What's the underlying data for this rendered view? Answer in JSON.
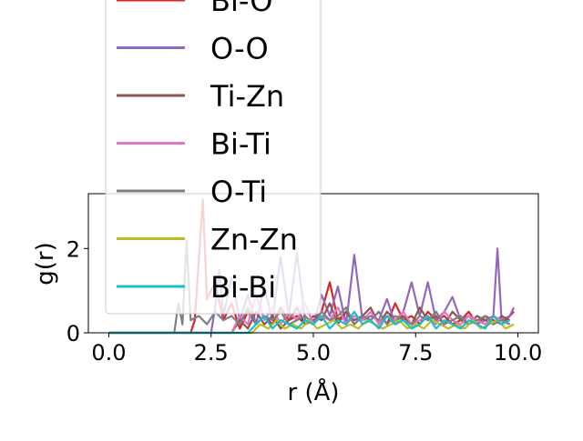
{
  "chart_data": {
    "type": "line",
    "xlabel": "r (Å)",
    "ylabel": "g(r)",
    "xlim": [
      -0.5,
      10.5
    ],
    "ylim": [
      0,
      3.3
    ],
    "x_ticks": [
      "0.0",
      "2.5",
      "5.0",
      "7.5",
      "10.0"
    ],
    "y_ticks": [
      "0",
      "2"
    ],
    "grid": false,
    "legend_placement": "upper-left, overflowing above plot",
    "series": [
      {
        "name": "Bi-O",
        "color": "#d62728",
        "x": [
          0,
          1.0,
          2.0,
          2.1,
          2.3,
          2.4,
          2.6,
          2.8,
          3.0,
          3.2,
          3.4,
          3.6,
          3.8,
          4.0,
          4.2,
          4.4,
          4.6,
          4.8,
          5.0,
          5.2,
          5.4,
          5.6,
          5.8,
          6.0,
          6.2,
          6.4,
          6.6,
          6.8,
          7.0,
          7.2,
          7.4,
          7.6,
          7.8,
          8.0,
          8.2,
          8.4,
          8.6,
          8.8,
          9.0,
          9.2,
          9.4,
          9.6,
          9.8,
          9.9
        ],
        "y": [
          0,
          0,
          0,
          0.3,
          3.15,
          0.8,
          1.2,
          0.3,
          0.7,
          0.1,
          0.5,
          0.2,
          0.4,
          0.2,
          0.6,
          0.3,
          0.4,
          0.2,
          0.3,
          0.5,
          1.2,
          0.3,
          0.5,
          0.2,
          0.4,
          0.3,
          0.5,
          0.2,
          0.7,
          0.3,
          0.4,
          0.2,
          0.5,
          0.3,
          0.4,
          0.2,
          0.3,
          0.5,
          0.2,
          0.4,
          0.3,
          0.2,
          0.4,
          0.5
        ]
      },
      {
        "name": "O-O",
        "color": "#9467bd",
        "x": [
          0,
          2.5,
          2.6,
          2.7,
          2.8,
          3.0,
          3.2,
          3.4,
          3.6,
          3.8,
          4.0,
          4.2,
          4.4,
          4.6,
          4.8,
          5.0,
          5.2,
          5.4,
          5.6,
          5.8,
          6.0,
          6.2,
          6.4,
          6.6,
          6.8,
          7.0,
          7.2,
          7.4,
          7.6,
          7.8,
          8.0,
          8.2,
          8.4,
          8.6,
          8.8,
          9.0,
          9.2,
          9.4,
          9.5,
          9.6,
          9.8,
          9.9
        ],
        "y": [
          0,
          0,
          0.6,
          1.5,
          0.4,
          1.3,
          0.3,
          0.9,
          0.2,
          1.1,
          0.3,
          1.8,
          0.4,
          1.9,
          0.3,
          0.2,
          0.9,
          0.4,
          1.1,
          0.2,
          1.85,
          0.3,
          0.4,
          0.3,
          0.8,
          0.2,
          0.5,
          1.2,
          0.4,
          1.2,
          0.3,
          0.5,
          0.85,
          0.3,
          0.4,
          0.2,
          0.3,
          0.4,
          2.0,
          0.3,
          0.4,
          0.6
        ]
      },
      {
        "name": "Ti-Zn",
        "color": "#8c564b",
        "x": [
          0,
          3.0,
          3.2,
          3.4,
          3.6,
          3.8,
          4.0,
          4.2,
          4.4,
          4.6,
          4.8,
          5.0,
          5.2,
          5.4,
          5.6,
          5.8,
          6.0,
          6.2,
          6.4,
          6.6,
          6.8,
          7.0,
          7.2,
          7.4,
          7.6,
          7.8,
          8.0,
          8.2,
          8.4,
          8.6,
          8.8,
          9.0,
          9.2,
          9.4,
          9.6,
          9.8
        ],
        "y": [
          0,
          0,
          0.3,
          0.1,
          0.5,
          0.2,
          0.4,
          0.1,
          0.3,
          0.6,
          0.2,
          0.4,
          0.3,
          0.7,
          0.2,
          0.5,
          0.3,
          0.4,
          0.6,
          0.2,
          0.5,
          0.3,
          0.4,
          0.2,
          0.6,
          0.3,
          0.4,
          0.2,
          0.5,
          0.3,
          0.2,
          0.4,
          0.3,
          0.2,
          0.4,
          0.3
        ]
      },
      {
        "name": "Bi-Ti",
        "color": "#e377c2",
        "x": [
          0,
          3.0,
          3.2,
          3.4,
          3.6,
          3.8,
          4.0,
          4.2,
          4.4,
          4.6,
          4.8,
          5.0,
          5.2,
          5.4,
          5.6,
          5.8,
          6.0,
          6.2,
          6.4,
          6.6,
          6.8,
          7.0,
          7.2,
          7.4,
          7.6,
          7.8,
          8.0,
          8.2,
          8.4,
          8.6,
          8.8,
          9.0,
          9.2,
          9.4,
          9.6,
          9.8
        ],
        "y": [
          0,
          0,
          0.4,
          0.2,
          0.9,
          0.3,
          0.6,
          0.2,
          0.5,
          0.3,
          0.7,
          0.2,
          0.4,
          0.3,
          0.6,
          0.2,
          0.4,
          0.3,
          0.5,
          0.2,
          0.4,
          0.3,
          0.5,
          0.2,
          0.3,
          0.4,
          0.2,
          0.5,
          0.3,
          0.2,
          0.4,
          0.3,
          0.2,
          0.4,
          0.3,
          0.2
        ]
      },
      {
        "name": "O-Ti",
        "color": "#7f7f7f",
        "x": [
          0,
          1.6,
          1.7,
          1.8,
          1.9,
          2.0,
          2.2,
          2.4,
          2.6,
          2.8,
          3.0,
          3.2,
          3.4,
          3.6,
          3.8,
          4.0,
          4.2,
          4.4,
          4.6,
          4.8,
          5.0,
          5.2,
          5.4,
          5.6,
          5.8,
          6.0,
          6.2,
          6.4,
          6.6,
          6.8,
          7.0,
          7.2,
          7.4,
          7.6,
          7.8,
          8.0,
          8.2,
          8.4,
          8.6,
          8.8,
          9.0,
          9.2,
          9.4,
          9.6,
          9.8
        ],
        "y": [
          0,
          0,
          0.7,
          0.2,
          2.2,
          0.3,
          0.4,
          0.2,
          0.5,
          0.3,
          0.4,
          0.2,
          0.6,
          0.2,
          0.4,
          0.3,
          0.5,
          0.2,
          0.3,
          0.4,
          0.2,
          0.5,
          0.3,
          0.4,
          0.6,
          0.2,
          0.4,
          0.3,
          0.5,
          0.2,
          0.4,
          0.3,
          0.2,
          0.4,
          0.3,
          0.5,
          0.2,
          0.3,
          0.4,
          0.2,
          0.3,
          0.4,
          0.2,
          0.3,
          0.2
        ]
      },
      {
        "name": "Zn-Zn",
        "color": "#bcbd22",
        "x": [
          0,
          3.5,
          3.7,
          3.9,
          4.1,
          4.3,
          4.5,
          4.7,
          4.9,
          5.1,
          5.3,
          5.5,
          5.7,
          5.9,
          6.1,
          6.3,
          6.5,
          6.7,
          6.9,
          7.1,
          7.3,
          7.5,
          7.7,
          7.9,
          8.1,
          8.3,
          8.5,
          8.7,
          8.9,
          9.1,
          9.3,
          9.5,
          9.7,
          9.9
        ],
        "y": [
          0,
          0,
          0.2,
          0.1,
          0.3,
          0.1,
          0.2,
          0.1,
          0.3,
          0.1,
          0.2,
          0.3,
          0.1,
          0.2,
          0.1,
          0.3,
          0.2,
          0.1,
          0.2,
          0.3,
          0.1,
          0.2,
          0.1,
          0.3,
          0.2,
          0.1,
          0.2,
          0.1,
          0.3,
          0.1,
          0.2,
          0.3,
          0.1,
          0.2
        ]
      },
      {
        "name": "Bi-Bi",
        "color": "#17becf",
        "x": [
          0,
          3.4,
          3.6,
          3.8,
          4.0,
          4.2,
          4.4,
          4.6,
          4.8,
          5.0,
          5.2,
          5.4,
          5.6,
          5.8,
          6.0,
          6.2,
          6.4,
          6.6,
          6.8,
          7.0,
          7.2,
          7.4,
          7.6,
          7.8,
          8.0,
          8.2,
          8.4,
          8.6,
          8.8,
          9.0,
          9.2,
          9.4,
          9.6,
          9.8
        ],
        "y": [
          0,
          0,
          0.2,
          0.4,
          0.1,
          0.3,
          0.2,
          0.1,
          0.3,
          0.2,
          0.4,
          0.1,
          0.3,
          0.2,
          0.5,
          0.2,
          0.3,
          0.1,
          0.4,
          0.2,
          0.3,
          0.1,
          0.2,
          0.4,
          0.1,
          0.3,
          0.2,
          0.1,
          0.3,
          0.2,
          0.1,
          0.4,
          0.2,
          0.3
        ]
      }
    ]
  }
}
